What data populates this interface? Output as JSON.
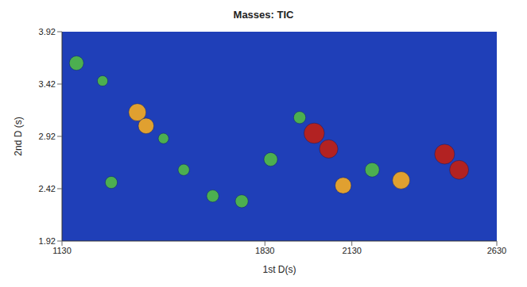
{
  "chart_data": {
    "type": "scatter",
    "title": "Masses: TIC",
    "x_label": "1st D(s)",
    "y_label": "2nd D (s)",
    "x": [
      1180,
      1270,
      1390,
      1420,
      1300,
      1550,
      1650,
      1750,
      1850,
      2000,
      2050,
      2100,
      2200,
      2300,
      2450,
      2500,
      1480,
      1950
    ],
    "y": [
      3.62,
      3.45,
      3.15,
      3.02,
      2.48,
      2.6,
      2.35,
      2.3,
      2.7,
      2.95,
      2.8,
      2.45,
      2.6,
      2.5,
      2.75,
      2.6,
      2.9,
      3.1
    ],
    "size": [
      45,
      20,
      70,
      55,
      30,
      25,
      30,
      35,
      40,
      100,
      80,
      60,
      45,
      70,
      95,
      85,
      20,
      30
    ],
    "colors": [
      "#4caf50",
      "#4caf50",
      "#e0a030",
      "#e0a030",
      "#4caf50",
      "#4caf50",
      "#4caf50",
      "#4caf50",
      "#4caf50",
      "#b22222",
      "#b22222",
      "#e0a030",
      "#4caf50",
      "#e0a030",
      "#b22222",
      "#b22222",
      "#4caf50",
      "#4caf50"
    ],
    "xlim": [
      1130,
      2630
    ],
    "ylim": [
      1.92,
      3.92
    ],
    "xticks": [
      1130,
      1830,
      2130,
      2630
    ],
    "yticks": [
      1.92,
      2.42,
      2.92,
      3.42,
      3.92
    ],
    "marker": "circle"
  }
}
